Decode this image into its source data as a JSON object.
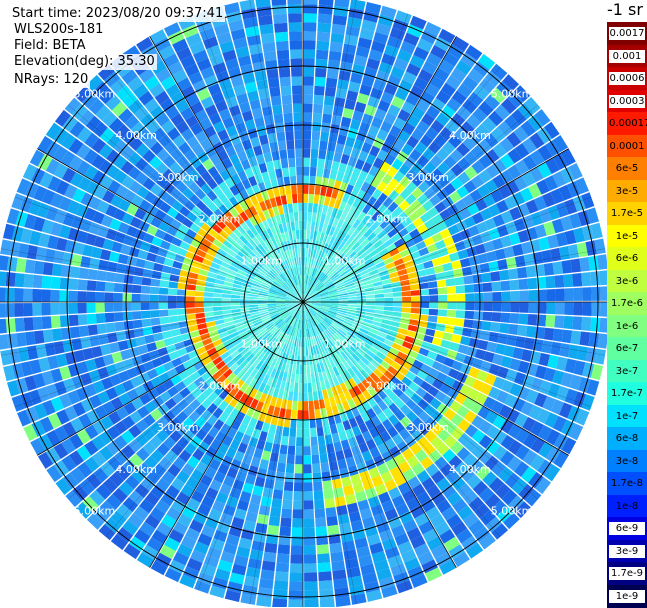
{
  "info": {
    "start_time": "Start time: 2023/08/20 09:37:41",
    "instrument": "WLS200s-181",
    "field": "Field: BETA",
    "elevation": "Elevation(deg): 35.30",
    "nrays": "NRays: 120"
  },
  "colorbar": {
    "unit_label": "-1 sr",
    "levels": [
      {
        "label": "0.0017",
        "color": "#800000"
      },
      {
        "label": "0.001",
        "color": "#a50000"
      },
      {
        "label": "0.0006",
        "color": "#c80000"
      },
      {
        "label": "0.0003",
        "color": "#e00000"
      },
      {
        "label": "0.00017",
        "color": "#ff1a00"
      },
      {
        "label": "0.0001",
        "color": "#ff5000"
      },
      {
        "label": "6e-5",
        "color": "#ff8000"
      },
      {
        "label": "3e-5",
        "color": "#ffab00"
      },
      {
        "label": "1.7e-5",
        "color": "#ffd200"
      },
      {
        "label": "1e-5",
        "color": "#ffff00"
      },
      {
        "label": "6e-6",
        "color": "#e0ff1a"
      },
      {
        "label": "3e-6",
        "color": "#c0ff40"
      },
      {
        "label": "1.7e-6",
        "color": "#a0ff60"
      },
      {
        "label": "1e-6",
        "color": "#80ff80"
      },
      {
        "label": "6e-7",
        "color": "#60ffa0"
      },
      {
        "label": "3e-7",
        "color": "#40ffc0"
      },
      {
        "label": "1.7e-7",
        "color": "#20ffe0"
      },
      {
        "label": "1e-7",
        "color": "#00e0ff"
      },
      {
        "label": "6e-8",
        "color": "#00b0ff"
      },
      {
        "label": "3e-8",
        "color": "#0080ff"
      },
      {
        "label": "1.7e-8",
        "color": "#0050ff"
      },
      {
        "label": "1e-8",
        "color": "#0020ff"
      },
      {
        "label": "6e-9",
        "color": "#0000e0"
      },
      {
        "label": "3e-9",
        "color": "#0000b0"
      },
      {
        "label": "1.7e-9",
        "color": "#000080"
      },
      {
        "label": "1e-9",
        "color": "#000050"
      }
    ]
  },
  "chart_data": {
    "type": "heatmap",
    "projection": "polar (PPI scan)",
    "n_rays": 120,
    "range_ring_labels": [
      "1.00km",
      "2.00km",
      "3.00km",
      "4.00km",
      "5.00km"
    ],
    "range_rings_km": [
      1,
      2,
      3,
      4,
      5
    ],
    "max_range_km": 5.2,
    "radial_gridline_spacing_deg": 30,
    "colors": {
      "background_field": "#1e7cf0",
      "near_field": "#3fe8e0",
      "aerosol_ring": "#ff6a00",
      "ring_core": "#ffe000"
    },
    "features": [
      {
        "name": "aerosol ring",
        "range_km": 1.85,
        "level": "6e-5"
      },
      {
        "name": "outer arc",
        "range_km_start": 3.2,
        "range_km_end": 3.6,
        "level": "3e-6"
      }
    ]
  }
}
